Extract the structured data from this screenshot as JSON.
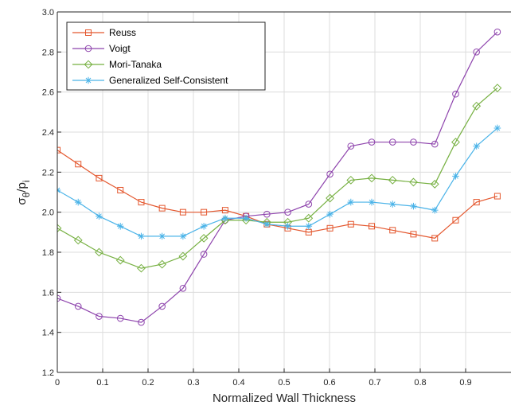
{
  "chart_data": {
    "type": "line",
    "xlabel": "Normalized Wall Thickness",
    "ylabel": "σθ/pi",
    "xlim": [
      0,
      1.0
    ],
    "ylim": [
      1.2,
      3.0
    ],
    "xticks": [
      0,
      0.1,
      0.2,
      0.3,
      0.4,
      0.5,
      0.6,
      0.7,
      0.8,
      0.9
    ],
    "xtick_labels": [
      "0",
      "0.1",
      "0.2",
      "0.3",
      "0.4",
      "0.5",
      "0.6",
      "0.7",
      "0.8",
      "0.9"
    ],
    "yticks": [
      1.2,
      1.4,
      1.6,
      1.8,
      2.0,
      2.2,
      2.4,
      2.6,
      2.8,
      3.0
    ],
    "ytick_labels": [
      "1.2",
      "1.4",
      "1.6",
      "1.8",
      "2.0",
      "2.2",
      "2.4",
      "2.6",
      "2.8",
      "3.0"
    ],
    "grid": true,
    "legend_position": "top-left",
    "x": [
      0,
      0.046,
      0.092,
      0.139,
      0.185,
      0.231,
      0.277,
      0.323,
      0.37,
      0.416,
      0.462,
      0.508,
      0.554,
      0.601,
      0.647,
      0.693,
      0.739,
      0.785,
      0.832,
      0.878,
      0.924,
      0.97
    ],
    "series": [
      {
        "name": "Reuss",
        "color": "#e4572e",
        "marker": "square",
        "values": [
          2.31,
          2.24,
          2.17,
          2.11,
          2.05,
          2.02,
          2.0,
          2.0,
          2.01,
          1.98,
          1.94,
          1.92,
          1.9,
          1.92,
          1.94,
          1.93,
          1.91,
          1.89,
          1.87,
          1.96,
          2.05,
          2.08
        ]
      },
      {
        "name": "Voigt",
        "color": "#8e44ad",
        "marker": "circle",
        "values": [
          1.57,
          1.53,
          1.48,
          1.47,
          1.45,
          1.53,
          1.62,
          1.79,
          1.96,
          1.98,
          1.99,
          2.0,
          2.04,
          2.19,
          2.33,
          2.35,
          2.35,
          2.35,
          2.34,
          2.59,
          2.8,
          2.9
        ]
      },
      {
        "name": "Mori-Tanaka",
        "color": "#76b041",
        "marker": "diamond",
        "values": [
          1.92,
          1.86,
          1.8,
          1.76,
          1.72,
          1.74,
          1.78,
          1.87,
          1.96,
          1.96,
          1.95,
          1.95,
          1.97,
          2.07,
          2.16,
          2.17,
          2.16,
          2.15,
          2.14,
          2.35,
          2.53,
          2.62
        ]
      },
      {
        "name": "Generalized Self-Consistent",
        "color": "#4ab3e8",
        "marker": "asterisk",
        "values": [
          2.11,
          2.05,
          1.98,
          1.93,
          1.88,
          1.88,
          1.88,
          1.93,
          1.97,
          1.97,
          1.94,
          1.93,
          1.93,
          1.99,
          2.05,
          2.05,
          2.04,
          2.03,
          2.01,
          2.18,
          2.33,
          2.42
        ]
      }
    ]
  }
}
